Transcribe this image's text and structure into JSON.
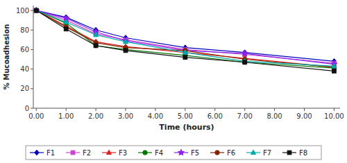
{
  "chart_data": {
    "type": "line",
    "xlabel": "Time (hours)",
    "ylabel": "% Mucoadhesion",
    "x": [
      0,
      1,
      2,
      3,
      5,
      7,
      10
    ],
    "series": [
      {
        "name": "F1",
        "color": "#0000BB",
        "marker": "diamond",
        "values": [
          100,
          93,
          80,
          72,
          62,
          57,
          48
        ],
        "errors": [
          0.5,
          1.5,
          1.5,
          1.2,
          1.2,
          1.2,
          1.2
        ]
      },
      {
        "name": "F2",
        "color": "#CC44CC",
        "marker": "square",
        "values": [
          100,
          90,
          76,
          70,
          60,
          55,
          46
        ],
        "errors": [
          0.5,
          1.5,
          1.5,
          1.2,
          1.2,
          1.2,
          1.2
        ]
      },
      {
        "name": "F3",
        "color": "#DD2222",
        "marker": "triangle",
        "values": [
          100,
          84,
          68,
          63,
          57,
          51,
          42
        ],
        "errors": [
          0.5,
          1.5,
          1.5,
          1.2,
          1.2,
          1.2,
          1.2
        ]
      },
      {
        "name": "F4",
        "color": "#007700",
        "marker": "circle",
        "values": [
          100,
          87,
          64,
          60,
          54,
          47,
          41
        ],
        "errors": [
          0.5,
          1.5,
          1.5,
          1.2,
          1.2,
          1.2,
          1.2
        ]
      },
      {
        "name": "F5",
        "color": "#8822EE",
        "marker": "star",
        "values": [
          100,
          92,
          78,
          69,
          59,
          56,
          45
        ],
        "errors": [
          0.5,
          1.5,
          1.5,
          1.2,
          1.2,
          1.2,
          1.2
        ]
      },
      {
        "name": "F6",
        "color": "#882200",
        "marker": "circle",
        "values": [
          100,
          83,
          67,
          62,
          59,
          50,
          42
        ],
        "errors": [
          0.5,
          1.5,
          1.5,
          1.2,
          1.2,
          1.2,
          1.2
        ]
      },
      {
        "name": "F7",
        "color": "#00AAAA",
        "marker": "triangle",
        "values": [
          100,
          88,
          75,
          68,
          57,
          48,
          43
        ],
        "errors": [
          0.5,
          1.5,
          1.5,
          1.2,
          1.2,
          1.2,
          1.2
        ]
      },
      {
        "name": "F8",
        "color": "#111111",
        "marker": "square",
        "values": [
          100,
          81,
          64,
          59,
          52,
          47,
          38
        ],
        "errors": [
          0.5,
          1.5,
          1.5,
          1.2,
          1.2,
          1.2,
          1.2
        ]
      }
    ],
    "xlim": [
      -0.1,
      10.2
    ],
    "ylim": [
      0,
      105
    ],
    "xticks": [
      {
        "value": 0,
        "label": "0.00"
      },
      {
        "value": 1,
        "label": "1.00"
      },
      {
        "value": 2,
        "label": "2.00"
      },
      {
        "value": 3,
        "label": "3.00"
      },
      {
        "value": 4,
        "label": "4.00"
      },
      {
        "value": 5,
        "label": "5.00"
      },
      {
        "value": 6,
        "label": "6.00"
      },
      {
        "value": 7,
        "label": "7.00"
      },
      {
        "value": 8,
        "label": "8.00"
      },
      {
        "value": 9,
        "label": "9.00"
      },
      {
        "value": 10,
        "label": "10.00"
      }
    ],
    "yticks": [
      0,
      20,
      40,
      60,
      80,
      100
    ],
    "grid": false,
    "legend": "bottom"
  }
}
